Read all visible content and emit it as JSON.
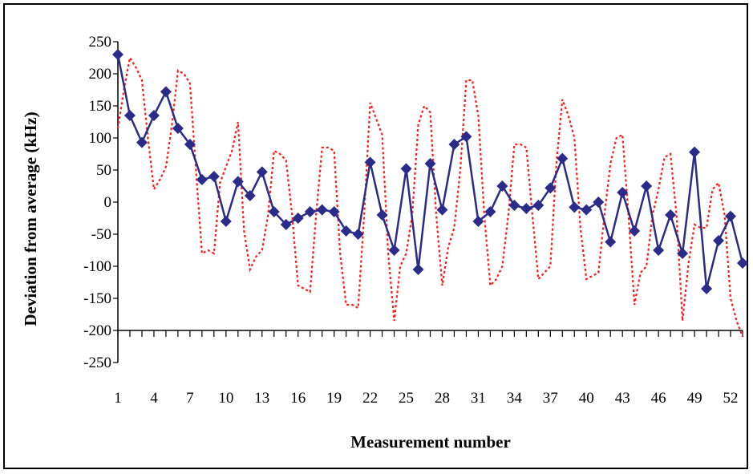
{
  "chart_data": {
    "type": "line",
    "title": "",
    "xlabel": "Measurement number",
    "ylabel": "Deviation from average (kHz)",
    "ylim": [
      -250,
      250
    ],
    "y_ticks": [
      250,
      200,
      150,
      100,
      50,
      0,
      -50,
      -100,
      -150,
      -200,
      -250
    ],
    "x_tick_labels": [
      1,
      4,
      7,
      10,
      13,
      16,
      19,
      22,
      25,
      28,
      31,
      34,
      37,
      40,
      43,
      46,
      49,
      52
    ],
    "xlim": [
      1,
      53
    ],
    "grid": false,
    "legend": "none",
    "series": [
      {
        "color": "#2b2b8a",
        "style": "solid-with-diamond-markers",
        "x": [
          1,
          2,
          3,
          4,
          5,
          6,
          7,
          8,
          9,
          10,
          11,
          12,
          13,
          14,
          15,
          16,
          17,
          18,
          19,
          20,
          21,
          22,
          23,
          24,
          25,
          26,
          27,
          28,
          29,
          30,
          31,
          32,
          33,
          34,
          35,
          36,
          37,
          38,
          39,
          40,
          41,
          42,
          43,
          44,
          45,
          46,
          47,
          48,
          49,
          50,
          51,
          52,
          53
        ],
        "values": [
          230,
          135,
          93,
          135,
          172,
          115,
          90,
          35,
          40,
          -30,
          32,
          10,
          47,
          -15,
          -35,
          -25,
          -15,
          -12,
          -15,
          -45,
          -50,
          62,
          -20,
          -75,
          52,
          -105,
          60,
          -12,
          90,
          102,
          -30,
          -15,
          25,
          -5,
          -10,
          -5,
          22,
          68,
          -8,
          -12,
          0,
          -62,
          15,
          -45,
          25,
          -75,
          -20,
          -80,
          78,
          -135,
          -60,
          -22,
          -95
        ]
      },
      {
        "color": "#ff1a1a",
        "style": "dotted",
        "x": [
          1,
          1.5,
          2,
          2.5,
          3,
          3.5,
          4,
          4.5,
          5,
          5.5,
          6,
          6.5,
          7,
          7.5,
          8,
          8.5,
          9,
          9.5,
          10,
          10.5,
          11,
          11.5,
          12,
          12.5,
          13,
          13.5,
          14,
          14.5,
          15,
          15.5,
          16,
          16.5,
          17,
          17.5,
          18,
          18.5,
          19,
          19.5,
          20,
          20.5,
          21,
          21.5,
          22,
          22.5,
          23,
          23.5,
          24,
          24.5,
          25,
          25.5,
          26,
          26.5,
          27,
          27.5,
          28,
          28.5,
          29,
          29.5,
          30,
          30.5,
          31,
          31.5,
          32,
          32.5,
          33,
          33.5,
          34,
          34.5,
          35,
          35.5,
          36,
          36.5,
          37,
          37.5,
          38,
          38.5,
          39,
          39.5,
          40,
          40.5,
          41,
          41.5,
          42,
          42.5,
          43,
          43.5,
          44,
          44.5,
          45,
          45.5,
          46,
          46.5,
          47,
          47.5,
          48,
          48.5,
          49,
          49.5,
          50,
          50.5,
          51,
          51.5,
          52,
          52.5,
          53
        ],
        "values": [
          115,
          175,
          225,
          210,
          190,
          100,
          20,
          35,
          55,
          120,
          205,
          200,
          185,
          50,
          -80,
          -75,
          -80,
          30,
          55,
          80,
          125,
          -45,
          -105,
          -85,
          -75,
          -20,
          80,
          75,
          65,
          -20,
          -130,
          -135,
          -140,
          -20,
          85,
          85,
          80,
          -80,
          -160,
          -160,
          -165,
          -20,
          155,
          130,
          105,
          -80,
          -185,
          -100,
          -80,
          -20,
          120,
          150,
          140,
          -20,
          -130,
          -70,
          -40,
          50,
          190,
          190,
          135,
          -20,
          -130,
          -120,
          -100,
          -20,
          90,
          90,
          85,
          -20,
          -120,
          -110,
          -100,
          60,
          160,
          135,
          100,
          -40,
          -120,
          -115,
          -110,
          -20,
          60,
          100,
          105,
          -20,
          -160,
          -110,
          -100,
          -20,
          20,
          70,
          75,
          -20,
          -185,
          -95,
          -35,
          -40,
          -40,
          20,
          30,
          -20,
          -150,
          -185,
          -210
        ]
      }
    ]
  }
}
